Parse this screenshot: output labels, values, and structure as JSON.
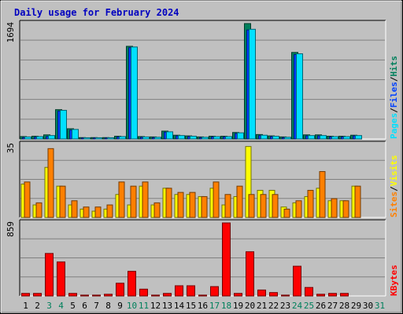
{
  "title": "Daily usage for February 2024",
  "colors": {
    "frame_bg": "#c0c0c0",
    "plot_bg": "#c0c0c0",
    "grid": "#808080",
    "title": "#0000c0",
    "hits": "#00805c",
    "files": "#0040ff",
    "pages": "#00e0ff",
    "visits": "#ffff00",
    "sites": "#ff8000",
    "kbytes": "#ff0000",
    "weekend": "#00805c",
    "day_text": "#000000"
  },
  "chart_data": [
    {
      "type": "bar",
      "title": "Daily usage for February 2024",
      "panel": "hits-files-pages",
      "ylabel_parts": [
        "Pages",
        "/",
        "Files",
        "/",
        "Hits"
      ],
      "ymax_label": "1694",
      "ylim": [
        0,
        1694
      ],
      "categories": [
        "1",
        "2",
        "3",
        "4",
        "5",
        "6",
        "7",
        "8",
        "9",
        "10",
        "11",
        "12",
        "13",
        "14",
        "15",
        "16",
        "17",
        "18",
        "19",
        "20",
        "21",
        "22",
        "23",
        "24",
        "25",
        "26",
        "27",
        "28",
        "29",
        "30",
        "31"
      ],
      "weekend_days": [
        "3",
        "4",
        "10",
        "11",
        "17",
        "18",
        "24",
        "25",
        "31"
      ],
      "series": [
        {
          "name": "Hits",
          "values": [
            35,
            40,
            60,
            430,
            150,
            20,
            20,
            20,
            40,
            1360,
            35,
            30,
            115,
            55,
            45,
            30,
            40,
            40,
            95,
            1694,
            65,
            45,
            30,
            1270,
            60,
            60,
            40,
            40,
            55,
            0,
            0
          ]
        },
        {
          "name": "Files",
          "values": [
            20,
            25,
            35,
            410,
            130,
            15,
            15,
            15,
            30,
            1340,
            25,
            20,
            100,
            45,
            35,
            20,
            30,
            30,
            80,
            1600,
            50,
            35,
            20,
            1240,
            45,
            45,
            30,
            30,
            45,
            0,
            0
          ]
        },
        {
          "name": "Pages",
          "values": [
            30,
            35,
            50,
            420,
            140,
            18,
            18,
            18,
            35,
            1350,
            30,
            25,
            105,
            50,
            40,
            25,
            35,
            35,
            90,
            1610,
            55,
            40,
            25,
            1250,
            50,
            50,
            35,
            35,
            50,
            0,
            0
          ]
        }
      ]
    },
    {
      "type": "bar",
      "panel": "visits-sites",
      "ylabel_parts": [
        "Sites",
        "/",
        "Visits"
      ],
      "ymax_label": "35",
      "ylim": [
        0,
        35
      ],
      "categories": [
        "1",
        "2",
        "3",
        "4",
        "5",
        "6",
        "7",
        "8",
        "9",
        "10",
        "11",
        "12",
        "13",
        "14",
        "15",
        "16",
        "17",
        "18",
        "19",
        "20",
        "21",
        "22",
        "23",
        "24",
        "25",
        "26",
        "27",
        "28",
        "29",
        "30",
        "31"
      ],
      "series": [
        {
          "name": "Visits",
          "values": [
            16,
            6,
            24,
            15,
            6,
            4,
            3,
            4,
            11,
            6,
            15,
            6,
            14,
            11,
            11,
            10,
            14,
            6,
            10,
            34,
            13,
            13,
            5,
            7,
            10,
            14,
            8,
            8,
            15,
            0,
            0
          ]
        },
        {
          "name": "Sites",
          "values": [
            17,
            7,
            33,
            15,
            8,
            5,
            5,
            6,
            17,
            15,
            17,
            7,
            14,
            12,
            12,
            10,
            17,
            11,
            15,
            11,
            11,
            11,
            4,
            8,
            13,
            22,
            9,
            8,
            15,
            0,
            0
          ]
        }
      ]
    },
    {
      "type": "bar",
      "panel": "kbytes",
      "ylabel_parts": [
        "KBytes"
      ],
      "ymax_label": "859",
      "ylim": [
        0,
        859
      ],
      "categories": [
        "1",
        "2",
        "3",
        "4",
        "5",
        "6",
        "7",
        "8",
        "9",
        "10",
        "11",
        "12",
        "13",
        "14",
        "15",
        "16",
        "17",
        "18",
        "19",
        "20",
        "21",
        "22",
        "23",
        "24",
        "25",
        "26",
        "27",
        "28",
        "29",
        "30",
        "31"
      ],
      "series": [
        {
          "name": "KBytes",
          "values": [
            30,
            30,
            500,
            400,
            30,
            10,
            10,
            20,
            150,
            290,
            80,
            10,
            30,
            120,
            120,
            10,
            110,
            859,
            30,
            520,
            70,
            40,
            10,
            350,
            100,
            20,
            30,
            30,
            0,
            0,
            0
          ]
        }
      ]
    }
  ]
}
